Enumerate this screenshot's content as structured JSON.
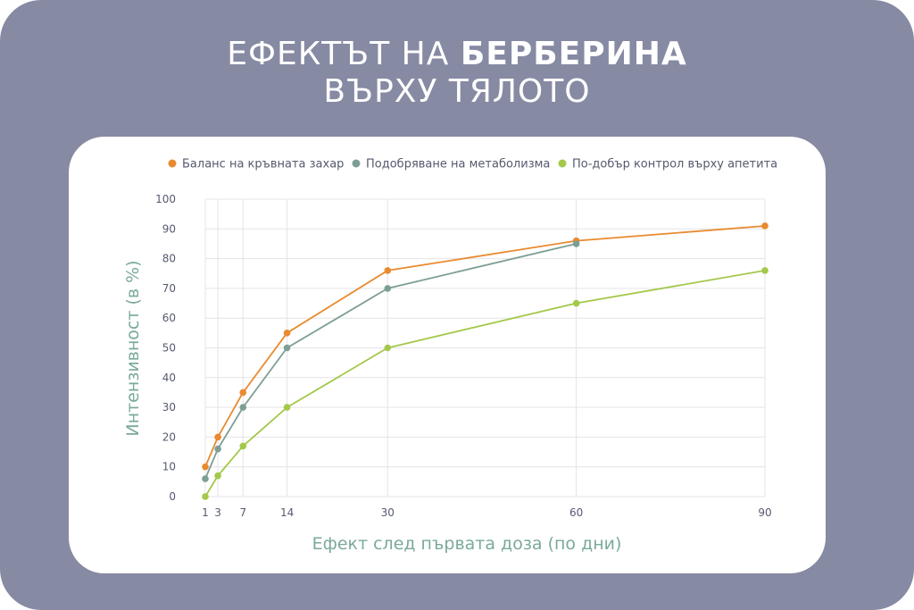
{
  "title": {
    "line1_regular": "ЕФЕКТЪТ НА",
    "line1_bold": "БЕРБЕРИНА",
    "line2": "ВЪРХУ ТЯЛОТО"
  },
  "chart_data": {
    "type": "line",
    "xlabel": "Ефект след първата доза (по дни)",
    "ylabel": "Интензивност (в %)",
    "x": [
      1,
      3,
      7,
      14,
      30,
      60,
      90
    ],
    "xlim": [
      1,
      90
    ],
    "ylim": [
      0,
      100
    ],
    "yticks": [
      "0",
      "10",
      "20",
      "30",
      "40",
      "50",
      "60",
      "70",
      "80",
      "90",
      "100"
    ],
    "xticks": [
      "1",
      "3",
      "7",
      "14",
      "30",
      "60",
      "90"
    ],
    "legend_position": "top",
    "grid": true,
    "series": [
      {
        "name": "Баланс на кръвната захар",
        "color": "#e98a2f",
        "points": [
          [
            1,
            10
          ],
          [
            3,
            20
          ],
          [
            7,
            35
          ],
          [
            14,
            55
          ],
          [
            30,
            76
          ],
          [
            60,
            86
          ],
          [
            90,
            91
          ]
        ]
      },
      {
        "name": "Подобряване на метаболизма",
        "color": "#7d9e96",
        "points": [
          [
            1,
            6
          ],
          [
            3,
            16
          ],
          [
            7,
            30
          ],
          [
            14,
            50
          ],
          [
            30,
            70
          ],
          [
            60,
            85
          ]
        ]
      },
      {
        "name": "По-добър контрол върху апетита",
        "color": "#a4c84a",
        "points": [
          [
            1,
            0
          ],
          [
            3,
            7
          ],
          [
            7,
            17
          ],
          [
            14,
            30
          ],
          [
            30,
            50
          ],
          [
            60,
            65
          ],
          [
            90,
            76
          ]
        ]
      }
    ]
  }
}
